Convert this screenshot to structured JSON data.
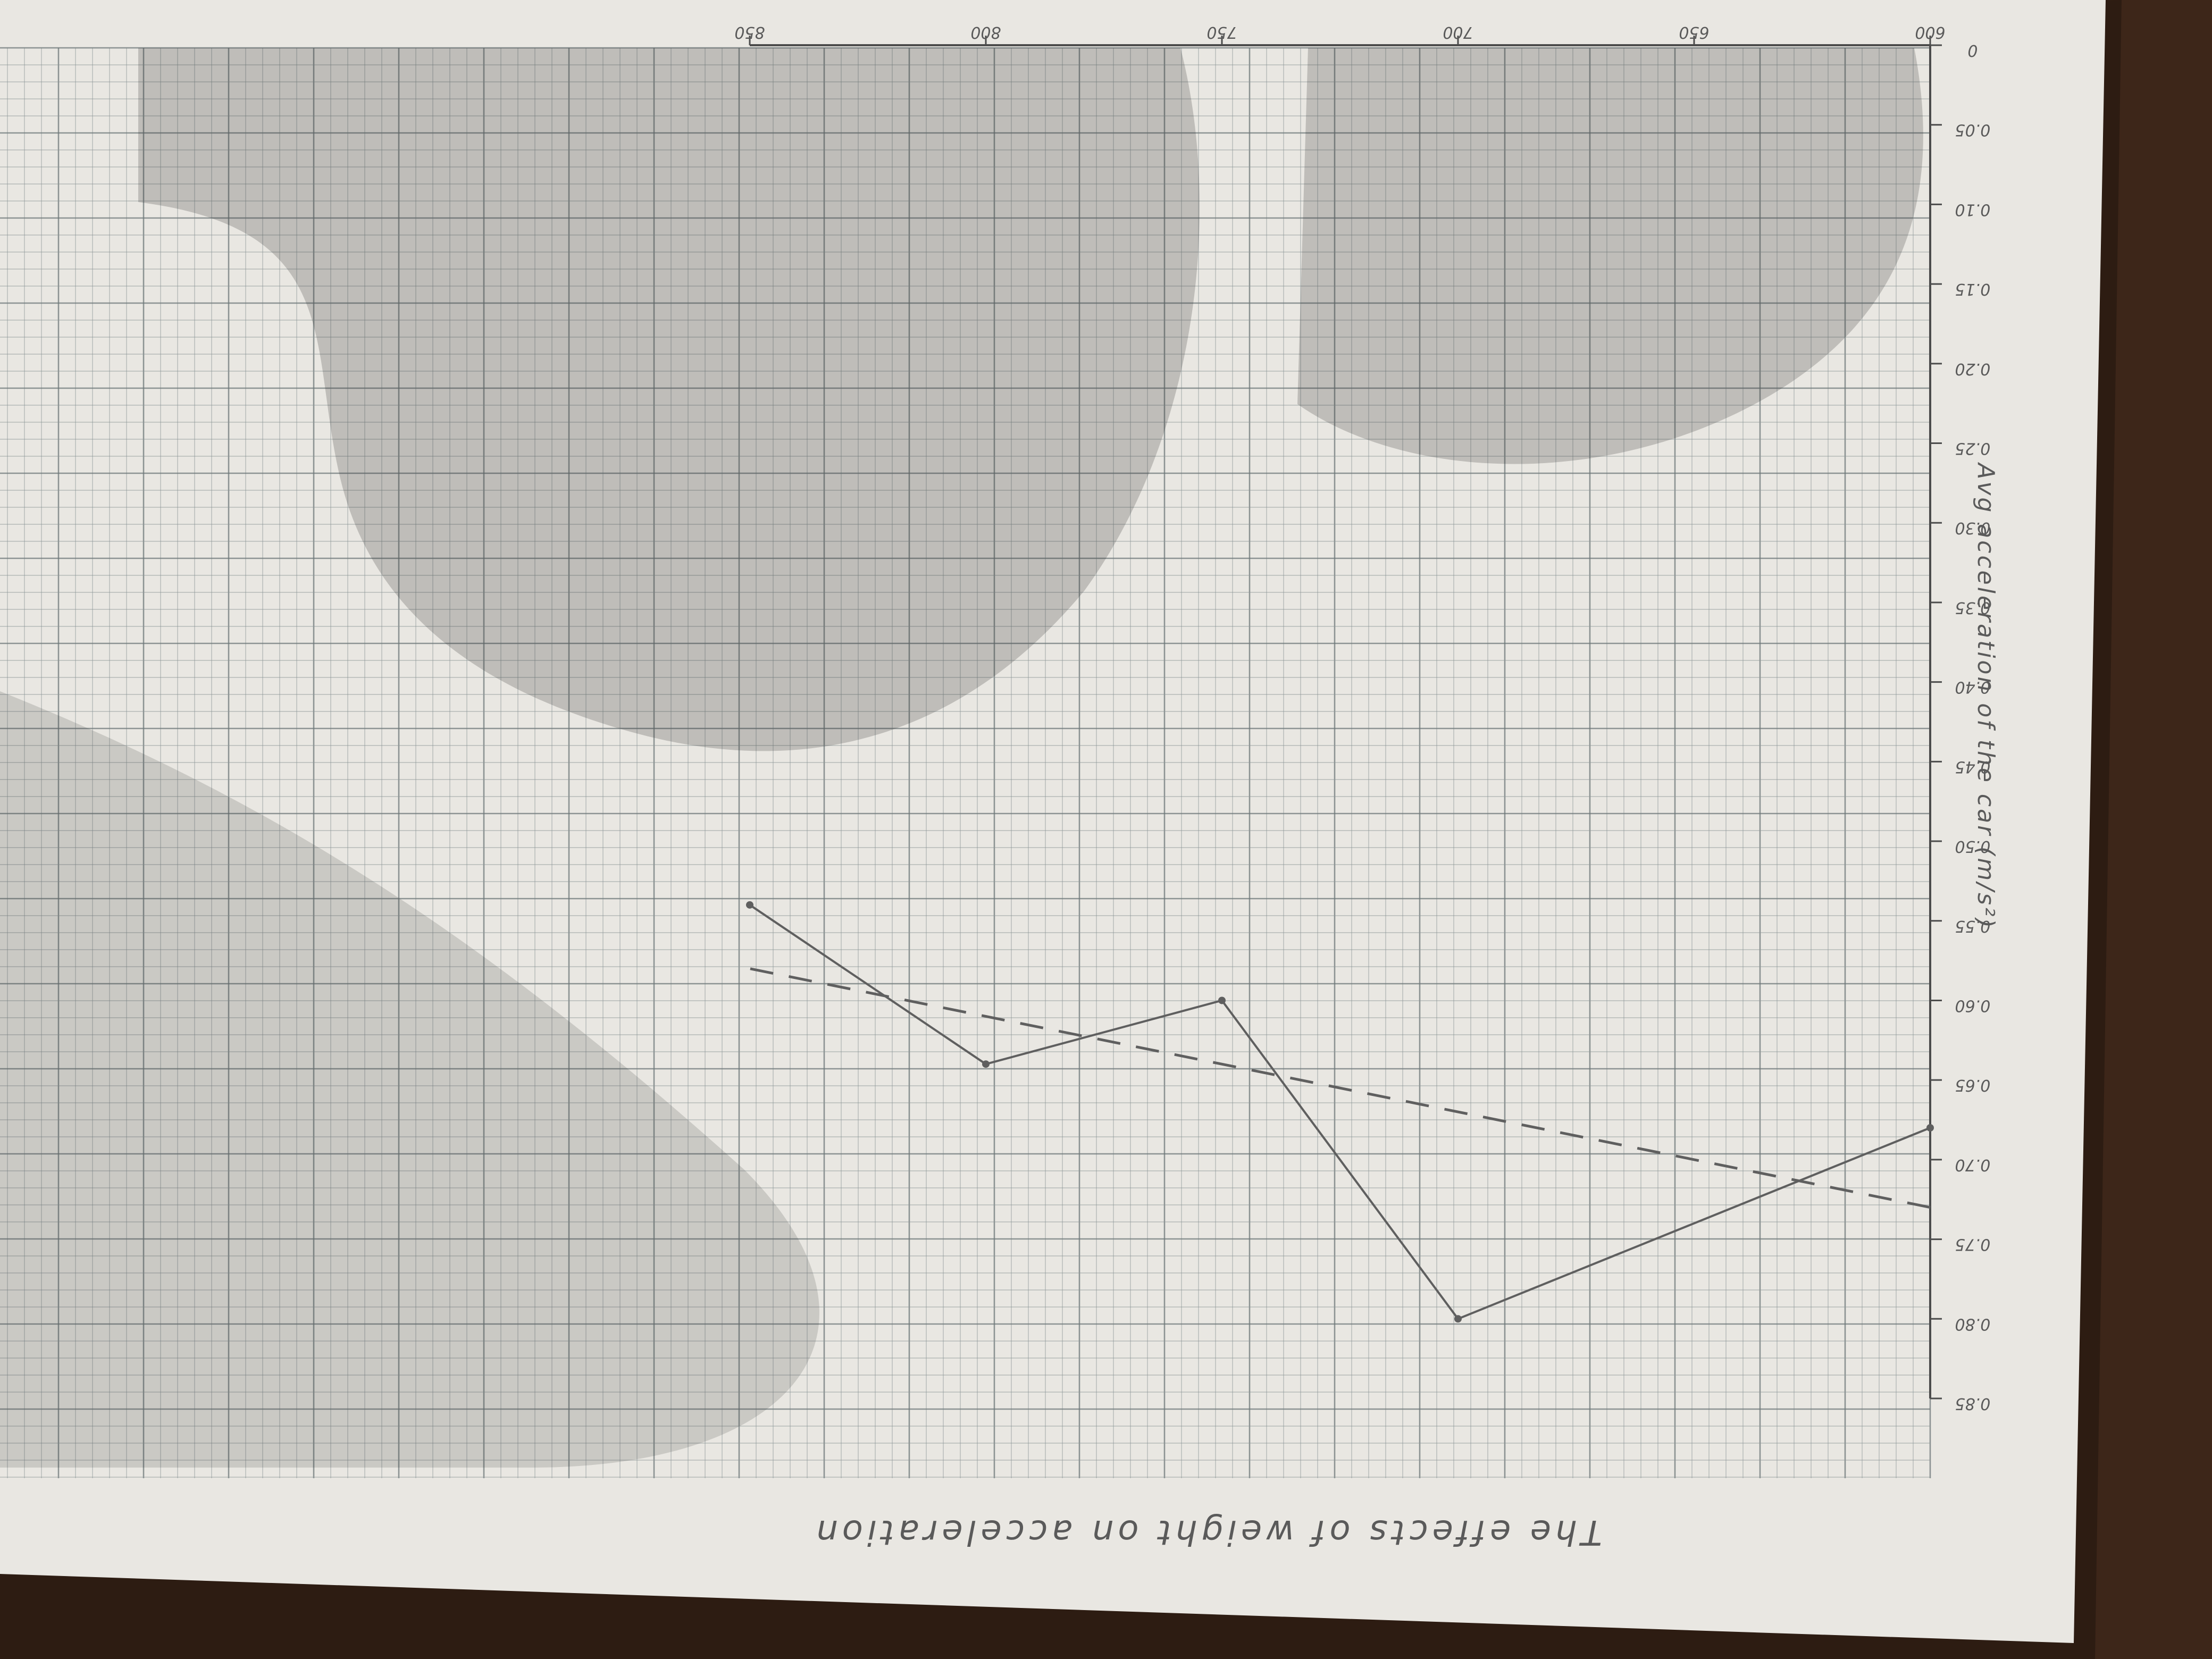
{
  "chart_data": {
    "type": "line",
    "title": "The effects of weight on acceleration",
    "ylabel": "Avg acceleration of the car (m/s²)",
    "xlabel": "",
    "x_ticks": [
      "600",
      "650",
      "700",
      "750",
      "800",
      "850"
    ],
    "y_ticks": [
      "0",
      "0.05",
      "0.10",
      "0.15",
      "0.20",
      "0.25",
      "0.30",
      "0.35",
      "0.40",
      "0.45",
      "0.50",
      "0.55",
      "0.60",
      "0.65",
      "0.70",
      "0.75",
      "0.80",
      "0.85"
    ],
    "xlim": [
      600,
      850
    ],
    "ylim": [
      0,
      0.85
    ],
    "grid": true,
    "series": [
      {
        "style": "solid",
        "x": [
          600,
          700,
          750,
          800,
          850
        ],
        "y": [
          0.68,
          0.8,
          0.6,
          0.64,
          0.54
        ]
      },
      {
        "style": "dashed-trend",
        "x": [
          600,
          850
        ],
        "y": [
          0.73,
          0.58
        ]
      }
    ]
  },
  "colors": {
    "paper": "#e9e7e2",
    "grid": "#8b9596",
    "pencil": "#5f5f5f",
    "table": "#3d2619"
  }
}
